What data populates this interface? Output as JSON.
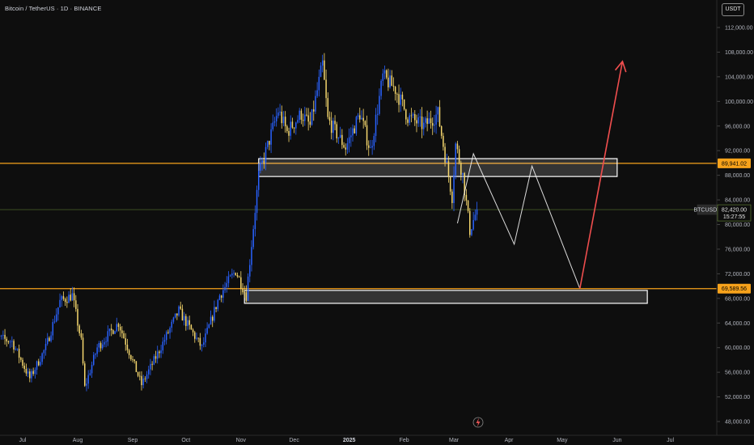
{
  "header": {
    "title": "Bitcoin / TetherUS · 1D · BINANCE",
    "currency_button": "USDT"
  },
  "colors": {
    "background": "#0e0e0e",
    "up_candle": "#2962ff",
    "down_candle": "#f5d76e",
    "level_line": "#f7a21b",
    "zone_fill": "#ffffff",
    "projection_line": "#ffffff",
    "target_line": "#f04e4e"
  },
  "chart_data": {
    "type": "candlestick",
    "symbol": "BTCUSDT",
    "timeframe": "1D",
    "exchange": "BINANCE",
    "ylim": [
      48000,
      112000
    ],
    "y_ticks": [
      "112,000.00",
      "108,000.00",
      "104,000.00",
      "100,000.00",
      "96,000.00",
      "92,000.00",
      "88,000.00",
      "84,000.00",
      "80,000.00",
      "76,000.00",
      "72,000.00",
      "68,000.00",
      "64,000.00",
      "60,000.00",
      "56,000.00",
      "52,000.00",
      "48,000.00"
    ],
    "x_ticks": [
      {
        "label": "Jul",
        "date": "2024-07-01"
      },
      {
        "label": "Aug",
        "date": "2024-08-01"
      },
      {
        "label": "Sep",
        "date": "2024-09-01"
      },
      {
        "label": "Oct",
        "date": "2024-10-01"
      },
      {
        "label": "Nov",
        "date": "2024-11-01"
      },
      {
        "label": "Dec",
        "date": "2024-12-01"
      },
      {
        "label": "2025",
        "date": "2025-01-01",
        "bold": true
      },
      {
        "label": "Feb",
        "date": "2025-02-01"
      },
      {
        "label": "Mar",
        "date": "2025-03-01"
      },
      {
        "label": "Apr",
        "date": "2025-04-01"
      },
      {
        "label": "May",
        "date": "2025-05-01"
      },
      {
        "label": "Jun",
        "date": "2025-06-01"
      },
      {
        "label": "Jul",
        "date": "2025-07-01"
      }
    ],
    "price_path": [
      {
        "date": "2024-06-12",
        "price": 62000
      },
      {
        "date": "2024-06-25",
        "price": 61000
      },
      {
        "date": "2024-07-05",
        "price": 55000
      },
      {
        "date": "2024-07-14",
        "price": 60000
      },
      {
        "date": "2024-07-22",
        "price": 67500
      },
      {
        "date": "2024-07-29",
        "price": 68500
      },
      {
        "date": "2024-08-03",
        "price": 61000
      },
      {
        "date": "2024-08-05",
        "price": 53500
      },
      {
        "date": "2024-08-12",
        "price": 60000
      },
      {
        "date": "2024-08-24",
        "price": 64000
      },
      {
        "date": "2024-09-06",
        "price": 54000
      },
      {
        "date": "2024-09-15",
        "price": 59000
      },
      {
        "date": "2024-09-27",
        "price": 66000
      },
      {
        "date": "2024-10-10",
        "price": 60000
      },
      {
        "date": "2024-10-20",
        "price": 68500
      },
      {
        "date": "2024-10-29",
        "price": 72500
      },
      {
        "date": "2024-11-04",
        "price": 68500
      },
      {
        "date": "2024-11-11",
        "price": 88000
      },
      {
        "date": "2024-11-22",
        "price": 98500
      },
      {
        "date": "2024-11-27",
        "price": 95000
      },
      {
        "date": "2024-12-05",
        "price": 98000
      },
      {
        "date": "2024-12-10",
        "price": 96000
      },
      {
        "date": "2024-12-17",
        "price": 106000
      },
      {
        "date": "2024-12-20",
        "price": 97000
      },
      {
        "date": "2024-12-30",
        "price": 92500
      },
      {
        "date": "2025-01-07",
        "price": 98000
      },
      {
        "date": "2025-01-13",
        "price": 92000
      },
      {
        "date": "2025-01-20",
        "price": 104000
      },
      {
        "date": "2025-01-27",
        "price": 102000
      },
      {
        "date": "2025-02-03",
        "price": 97500
      },
      {
        "date": "2025-02-12",
        "price": 96000
      },
      {
        "date": "2025-02-20",
        "price": 98000
      },
      {
        "date": "2025-02-28",
        "price": 84500
      },
      {
        "date": "2025-03-02",
        "price": 93000
      },
      {
        "date": "2025-03-06",
        "price": 88000
      },
      {
        "date": "2025-03-10",
        "price": 79000
      },
      {
        "date": "2025-03-14",
        "price": 82420
      }
    ],
    "levels": [
      {
        "label": "89,941.02",
        "price": 89941.02,
        "color": "#f7a21b"
      },
      {
        "label": "69,589.56",
        "price": 69589.56,
        "color": "#f7a21b"
      }
    ],
    "last_price": {
      "symbol": "BTCUSDT",
      "label": "82,420.00",
      "countdown": "15:27:55",
      "price": 82420
    },
    "zones": [
      {
        "name": "resistance-zone",
        "from_date": "2024-11-11",
        "to_date": "2025-06-01",
        "low": 87800,
        "high": 90700
      },
      {
        "name": "support-zone",
        "from_date": "2024-11-03",
        "to_date": "2025-06-18",
        "low": 67200,
        "high": 69300
      }
    ],
    "projection": [
      {
        "date": "2025-03-03",
        "price": 80200
      },
      {
        "date": "2025-03-12",
        "price": 91500
      },
      {
        "date": "2025-04-04",
        "price": 76800
      },
      {
        "date": "2025-04-14",
        "price": 89500
      },
      {
        "date": "2025-05-11",
        "price": 69600
      }
    ],
    "target_arrow": [
      {
        "date": "2025-05-11",
        "price": 69600
      },
      {
        "date": "2025-06-04",
        "price": 106500
      }
    ]
  }
}
